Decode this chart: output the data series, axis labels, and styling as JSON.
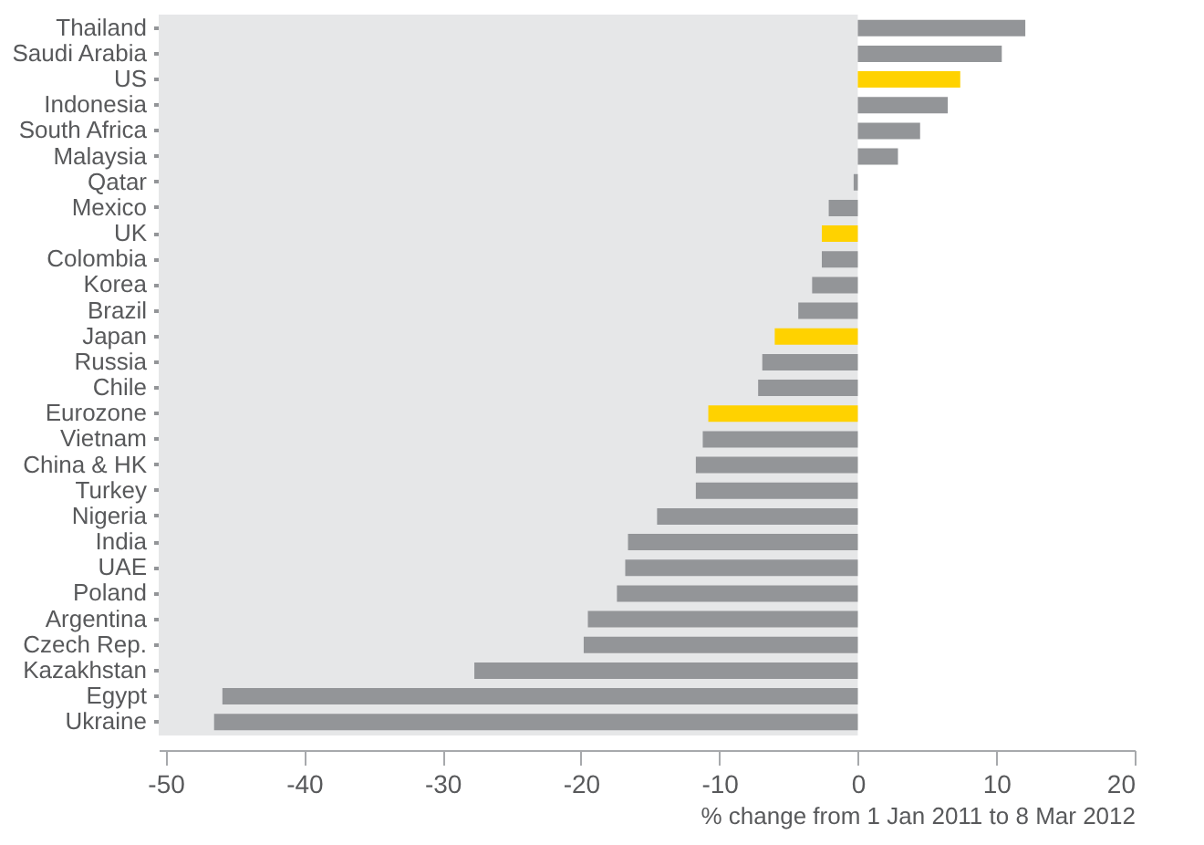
{
  "chart_data": {
    "type": "bar",
    "orientation": "horizontal",
    "xlabel": "% change from 1 Jan 2011 to 8 Mar 2012",
    "categories": [
      "Thailand",
      "Saudi Arabia",
      "US",
      "Indonesia",
      "South Africa",
      "Malaysia",
      "Qatar",
      "Mexico",
      "UK",
      "Colombia",
      "Korea",
      "Brazil",
      "Japan",
      "Russia",
      "Chile",
      "Eurozone",
      "Vietnam",
      "China & HK",
      "Turkey",
      "Nigeria",
      "India",
      "UAE",
      "Poland",
      "Argentina",
      "Czech Rep.",
      "Kazakhstan",
      "Egypt",
      "Ukraine"
    ],
    "values": [
      12.1,
      10.4,
      7.4,
      6.5,
      4.5,
      2.9,
      -0.3,
      -2.1,
      -2.6,
      -2.6,
      -3.3,
      -4.3,
      -6.0,
      -6.9,
      -7.2,
      -10.8,
      -11.2,
      -11.7,
      -11.7,
      -14.5,
      -16.6,
      -16.8,
      -17.4,
      -19.5,
      -19.8,
      -27.7,
      -45.9,
      -46.5
    ],
    "colors": [
      "#939598",
      "#939598",
      "#ffd200",
      "#939598",
      "#939598",
      "#939598",
      "#939598",
      "#939598",
      "#ffd200",
      "#939598",
      "#939598",
      "#939598",
      "#ffd200",
      "#939598",
      "#939598",
      "#ffd200",
      "#939598",
      "#939598",
      "#939598",
      "#939598",
      "#939598",
      "#939598",
      "#939598",
      "#939598",
      "#939598",
      "#939598",
      "#939598",
      "#939598"
    ],
    "xlim": [
      -50.5,
      20
    ],
    "xticks": [
      -50,
      -40,
      -30,
      -20,
      -10,
      0,
      10,
      20
    ],
    "bands": [
      {
        "axis": "x",
        "from": -50.5,
        "to": 0,
        "color": "#e6e7e8"
      }
    ],
    "grid": false
  }
}
